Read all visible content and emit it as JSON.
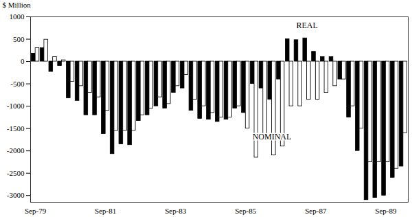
{
  "chart_data": {
    "type": "bar",
    "y_label": "$ Million",
    "categories": [
      "Sep-79",
      null,
      null,
      null,
      null,
      null,
      null,
      null,
      "Sep-81",
      null,
      null,
      null,
      null,
      null,
      null,
      null,
      "Sep-83",
      null,
      null,
      null,
      null,
      null,
      null,
      null,
      "Sep-85",
      null,
      null,
      null,
      null,
      null,
      null,
      null,
      "Sep-87",
      null,
      null,
      null,
      null,
      null,
      null,
      null,
      "Sep-89",
      null,
      null
    ],
    "series": [
      {
        "name": "REAL",
        "color": "#000000",
        "values": [
          180,
          300,
          -230,
          -100,
          -820,
          -880,
          -1200,
          -1200,
          -1620,
          -2070,
          -1850,
          -1870,
          -1330,
          -1200,
          -1000,
          -1050,
          -700,
          -600,
          -1100,
          -1280,
          -1300,
          -1350,
          -1300,
          -1050,
          -1150,
          -500,
          -600,
          -850,
          -400,
          500,
          480,
          520,
          220,
          100,
          100,
          -400,
          -1250,
          -2000,
          -3100,
          -3050,
          -3000,
          -2600,
          -2350
        ]
      },
      {
        "name": "NOMINAL",
        "color": "#ffffff",
        "values": [
          300,
          490,
          100,
          30,
          -450,
          -550,
          -700,
          -800,
          -1100,
          -1550,
          -1550,
          -1550,
          -1200,
          -1050,
          -800,
          -950,
          -550,
          -300,
          -850,
          -1000,
          -1150,
          -1250,
          -1250,
          -1000,
          -1500,
          -2150,
          -1700,
          -2100,
          -1900,
          -1000,
          -1000,
          -850,
          -850,
          -700,
          -550,
          -400,
          -1000,
          -1500,
          -2250,
          -2250,
          -2250,
          -2400,
          -1600
        ]
      }
    ],
    "annotations": [
      {
        "text": "REAL",
        "x": 31,
        "y": 800
      },
      {
        "text": "NOMINAL",
        "x": 27,
        "y": -1680
      }
    ],
    "ylim": [
      -3150,
      1000
    ],
    "yticks": [
      -3000,
      -2500,
      -2000,
      -1500,
      -1000,
      -500,
      0,
      500,
      1000
    ],
    "grid": false,
    "legend": false
  }
}
